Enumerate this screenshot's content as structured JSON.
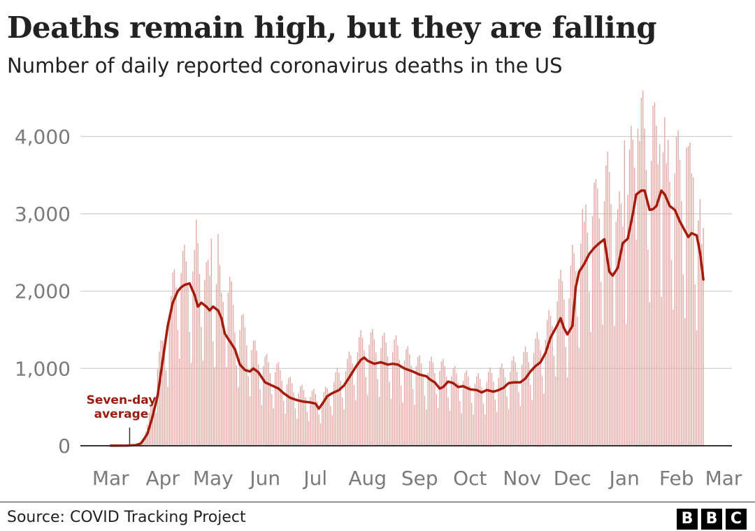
{
  "header": {
    "title": "Deaths remain high, but they are falling",
    "subtitle": "Number of daily reported coronavirus deaths in the US"
  },
  "footer": {
    "source": "Source: COVID Tracking Project",
    "logo_letters": [
      "B",
      "B",
      "C"
    ]
  },
  "colors": {
    "bar": "#e2a7a2",
    "line": "#a51b0b",
    "annotation": "#9b1b0f",
    "grid": "#cccccc",
    "axis_text": "#7a7a7a"
  },
  "chart_data": {
    "type": "bar",
    "title": "Deaths remain high, but they are falling",
    "subtitle": "Number of daily reported coronavirus deaths in the US",
    "xlabel": "",
    "ylabel": "",
    "ylim": [
      0,
      4500
    ],
    "yticks": [
      0,
      1000,
      2000,
      3000,
      4000
    ],
    "ytick_labels": [
      "0",
      "1,000",
      "2,000",
      "3,000",
      "4,000"
    ],
    "xticks": [
      "Mar",
      "Apr",
      "May",
      "Jun",
      "Jul",
      "Aug",
      "Sep",
      "Oct",
      "Nov",
      "Dec",
      "Jan",
      "Feb",
      "Mar"
    ],
    "xtick_days": [
      0,
      31,
      61,
      92,
      122,
      153,
      184,
      214,
      245,
      275,
      306,
      337,
      365
    ],
    "x_range_days": [
      -18,
      370
    ],
    "grid": "horizontal",
    "start_date": "1 Mar 2020",
    "daily_days_range": [
      0,
      353
    ],
    "series": [
      {
        "name": "Daily reported deaths",
        "type": "bar",
        "day_anchors": [
          [
            0,
            2
          ],
          [
            10,
            5
          ],
          [
            15,
            15
          ],
          [
            19,
            60
          ],
          [
            22,
            220
          ],
          [
            26,
            650
          ],
          [
            28,
            900
          ],
          [
            30,
            1050
          ],
          [
            33,
            1300
          ],
          [
            36,
            1550
          ],
          [
            38,
            1900
          ],
          [
            41,
            2050
          ],
          [
            44,
            2000
          ],
          [
            48,
            1950
          ],
          [
            51,
            2250
          ],
          [
            54,
            2050
          ],
          [
            58,
            1850
          ],
          [
            61,
            1800
          ],
          [
            64,
            1950
          ],
          [
            66,
            1650
          ],
          [
            68,
            1900
          ],
          [
            71,
            1750
          ],
          [
            74,
            1400
          ],
          [
            78,
            1350
          ],
          [
            82,
            1200
          ],
          [
            86,
            1050
          ],
          [
            90,
            950
          ],
          [
            94,
            900
          ],
          [
            97,
            880
          ],
          [
            102,
            800
          ],
          [
            106,
            700
          ],
          [
            112,
            620
          ],
          [
            118,
            580
          ],
          [
            122,
            560
          ],
          [
            126,
            520
          ],
          [
            129,
            620
          ],
          [
            133,
            750
          ],
          [
            137,
            800
          ],
          [
            141,
            900
          ],
          [
            145,
            1050
          ],
          [
            149,
            1150
          ],
          [
            153,
            1200
          ],
          [
            157,
            1150
          ],
          [
            161,
            1150
          ],
          [
            165,
            1100
          ],
          [
            170,
            1100
          ],
          [
            175,
            1000
          ],
          [
            180,
            980
          ],
          [
            184,
            900
          ],
          [
            188,
            850
          ],
          [
            192,
            900
          ],
          [
            196,
            880
          ],
          [
            200,
            850
          ],
          [
            206,
            780
          ],
          [
            212,
            750
          ],
          [
            218,
            720
          ],
          [
            222,
            720
          ],
          [
            226,
            780
          ],
          [
            231,
            800
          ],
          [
            236,
            850
          ],
          [
            241,
            900
          ],
          [
            245,
            950
          ],
          [
            250,
            1050
          ],
          [
            255,
            1150
          ],
          [
            259,
            1250
          ],
          [
            262,
            1400
          ],
          [
            266,
            1700
          ],
          [
            270,
            1800
          ],
          [
            272,
            1600
          ],
          [
            275,
            2000
          ],
          [
            279,
            2300
          ],
          [
            283,
            2600
          ],
          [
            287,
            2700
          ],
          [
            291,
            2800
          ],
          [
            295,
            2900
          ],
          [
            299,
            3000
          ],
          [
            302,
            2450
          ],
          [
            305,
            2700
          ],
          [
            308,
            2950
          ],
          [
            311,
            3300
          ],
          [
            313,
            3550
          ],
          [
            316,
            3600
          ],
          [
            319,
            3400
          ],
          [
            322,
            3350
          ],
          [
            325,
            3450
          ],
          [
            328,
            3500
          ],
          [
            331,
            3350
          ],
          [
            334,
            3200
          ],
          [
            337,
            3200
          ],
          [
            341,
            2950
          ],
          [
            344,
            3100
          ],
          [
            347,
            2850
          ],
          [
            350,
            2650
          ],
          [
            353,
            2350
          ]
        ],
        "weekly_pattern": [
          1.1,
          1.25,
          1.3,
          1.2,
          1.05,
          0.75,
          0.55
        ],
        "notable_peaks": [
          [
            50,
            2530
          ],
          [
            60,
            2680
          ],
          [
            64,
            2740
          ],
          [
            282,
            2900
          ],
          [
            289,
            3450
          ],
          [
            306,
            3950
          ],
          [
            314,
            4100
          ],
          [
            318,
            4100
          ],
          [
            323,
            4400
          ],
          [
            327,
            3900
          ],
          [
            331,
            3650
          ],
          [
            339,
            3700
          ],
          [
            343,
            3860
          ],
          [
            347,
            3470
          ],
          [
            352,
            2610
          ]
        ]
      },
      {
        "name": "Seven-day average",
        "type": "line",
        "points": [
          [
            0,
            1
          ],
          [
            10,
            2
          ],
          [
            15,
            8
          ],
          [
            18,
            30
          ],
          [
            20,
            90
          ],
          [
            22,
            160
          ],
          [
            25,
            380
          ],
          [
            28,
            650
          ],
          [
            31,
            1100
          ],
          [
            34,
            1550
          ],
          [
            37,
            1850
          ],
          [
            40,
            2000
          ],
          [
            42,
            2050
          ],
          [
            44,
            2080
          ],
          [
            47,
            2100
          ],
          [
            50,
            1950
          ],
          [
            52,
            1800
          ],
          [
            54,
            1850
          ],
          [
            57,
            1800
          ],
          [
            59,
            1750
          ],
          [
            61,
            1800
          ],
          [
            64,
            1750
          ],
          [
            66,
            1650
          ],
          [
            68,
            1450
          ],
          [
            71,
            1350
          ],
          [
            74,
            1250
          ],
          [
            77,
            1050
          ],
          [
            80,
            980
          ],
          [
            83,
            960
          ],
          [
            85,
            1000
          ],
          [
            88,
            950
          ],
          [
            92,
            820
          ],
          [
            96,
            780
          ],
          [
            100,
            740
          ],
          [
            103,
            680
          ],
          [
            107,
            620
          ],
          [
            111,
            590
          ],
          [
            115,
            570
          ],
          [
            119,
            560
          ],
          [
            122,
            545
          ],
          [
            124,
            480
          ],
          [
            126,
            540
          ],
          [
            129,
            640
          ],
          [
            132,
            680
          ],
          [
            136,
            720
          ],
          [
            139,
            780
          ],
          [
            142,
            880
          ],
          [
            146,
            1020
          ],
          [
            149,
            1110
          ],
          [
            151,
            1140
          ],
          [
            153,
            1100
          ],
          [
            157,
            1060
          ],
          [
            161,
            1080
          ],
          [
            165,
            1050
          ],
          [
            168,
            1060
          ],
          [
            171,
            1050
          ],
          [
            175,
            1000
          ],
          [
            180,
            960
          ],
          [
            184,
            920
          ],
          [
            188,
            900
          ],
          [
            190,
            860
          ],
          [
            193,
            820
          ],
          [
            196,
            740
          ],
          [
            198,
            760
          ],
          [
            201,
            830
          ],
          [
            204,
            810
          ],
          [
            207,
            760
          ],
          [
            210,
            770
          ],
          [
            214,
            730
          ],
          [
            218,
            720
          ],
          [
            221,
            690
          ],
          [
            224,
            720
          ],
          [
            228,
            700
          ],
          [
            231,
            720
          ],
          [
            234,
            750
          ],
          [
            237,
            810
          ],
          [
            240,
            820
          ],
          [
            244,
            820
          ],
          [
            247,
            870
          ],
          [
            250,
            960
          ],
          [
            253,
            1030
          ],
          [
            256,
            1080
          ],
          [
            259,
            1200
          ],
          [
            262,
            1400
          ],
          [
            266,
            1560
          ],
          [
            268,
            1650
          ],
          [
            270,
            1520
          ],
          [
            272,
            1440
          ],
          [
            275,
            1550
          ],
          [
            277,
            2050
          ],
          [
            279,
            2250
          ],
          [
            282,
            2350
          ],
          [
            285,
            2480
          ],
          [
            288,
            2560
          ],
          [
            291,
            2620
          ],
          [
            294,
            2670
          ],
          [
            297,
            2250
          ],
          [
            299,
            2200
          ],
          [
            302,
            2300
          ],
          [
            305,
            2620
          ],
          [
            308,
            2680
          ],
          [
            311,
            3000
          ],
          [
            313,
            3250
          ],
          [
            316,
            3300
          ],
          [
            318,
            3300
          ],
          [
            321,
            3050
          ],
          [
            323,
            3060
          ],
          [
            325,
            3100
          ],
          [
            328,
            3300
          ],
          [
            330,
            3250
          ],
          [
            333,
            3100
          ],
          [
            336,
            3050
          ],
          [
            339,
            2900
          ],
          [
            342,
            2780
          ],
          [
            344,
            2700
          ],
          [
            346,
            2750
          ],
          [
            349,
            2720
          ],
          [
            351,
            2500
          ],
          [
            353,
            2150
          ]
        ]
      }
    ],
    "annotations": [
      {
        "text": [
          "Seven-day",
          "average"
        ],
        "at_day": 8,
        "points_to_value": 0
      }
    ]
  }
}
